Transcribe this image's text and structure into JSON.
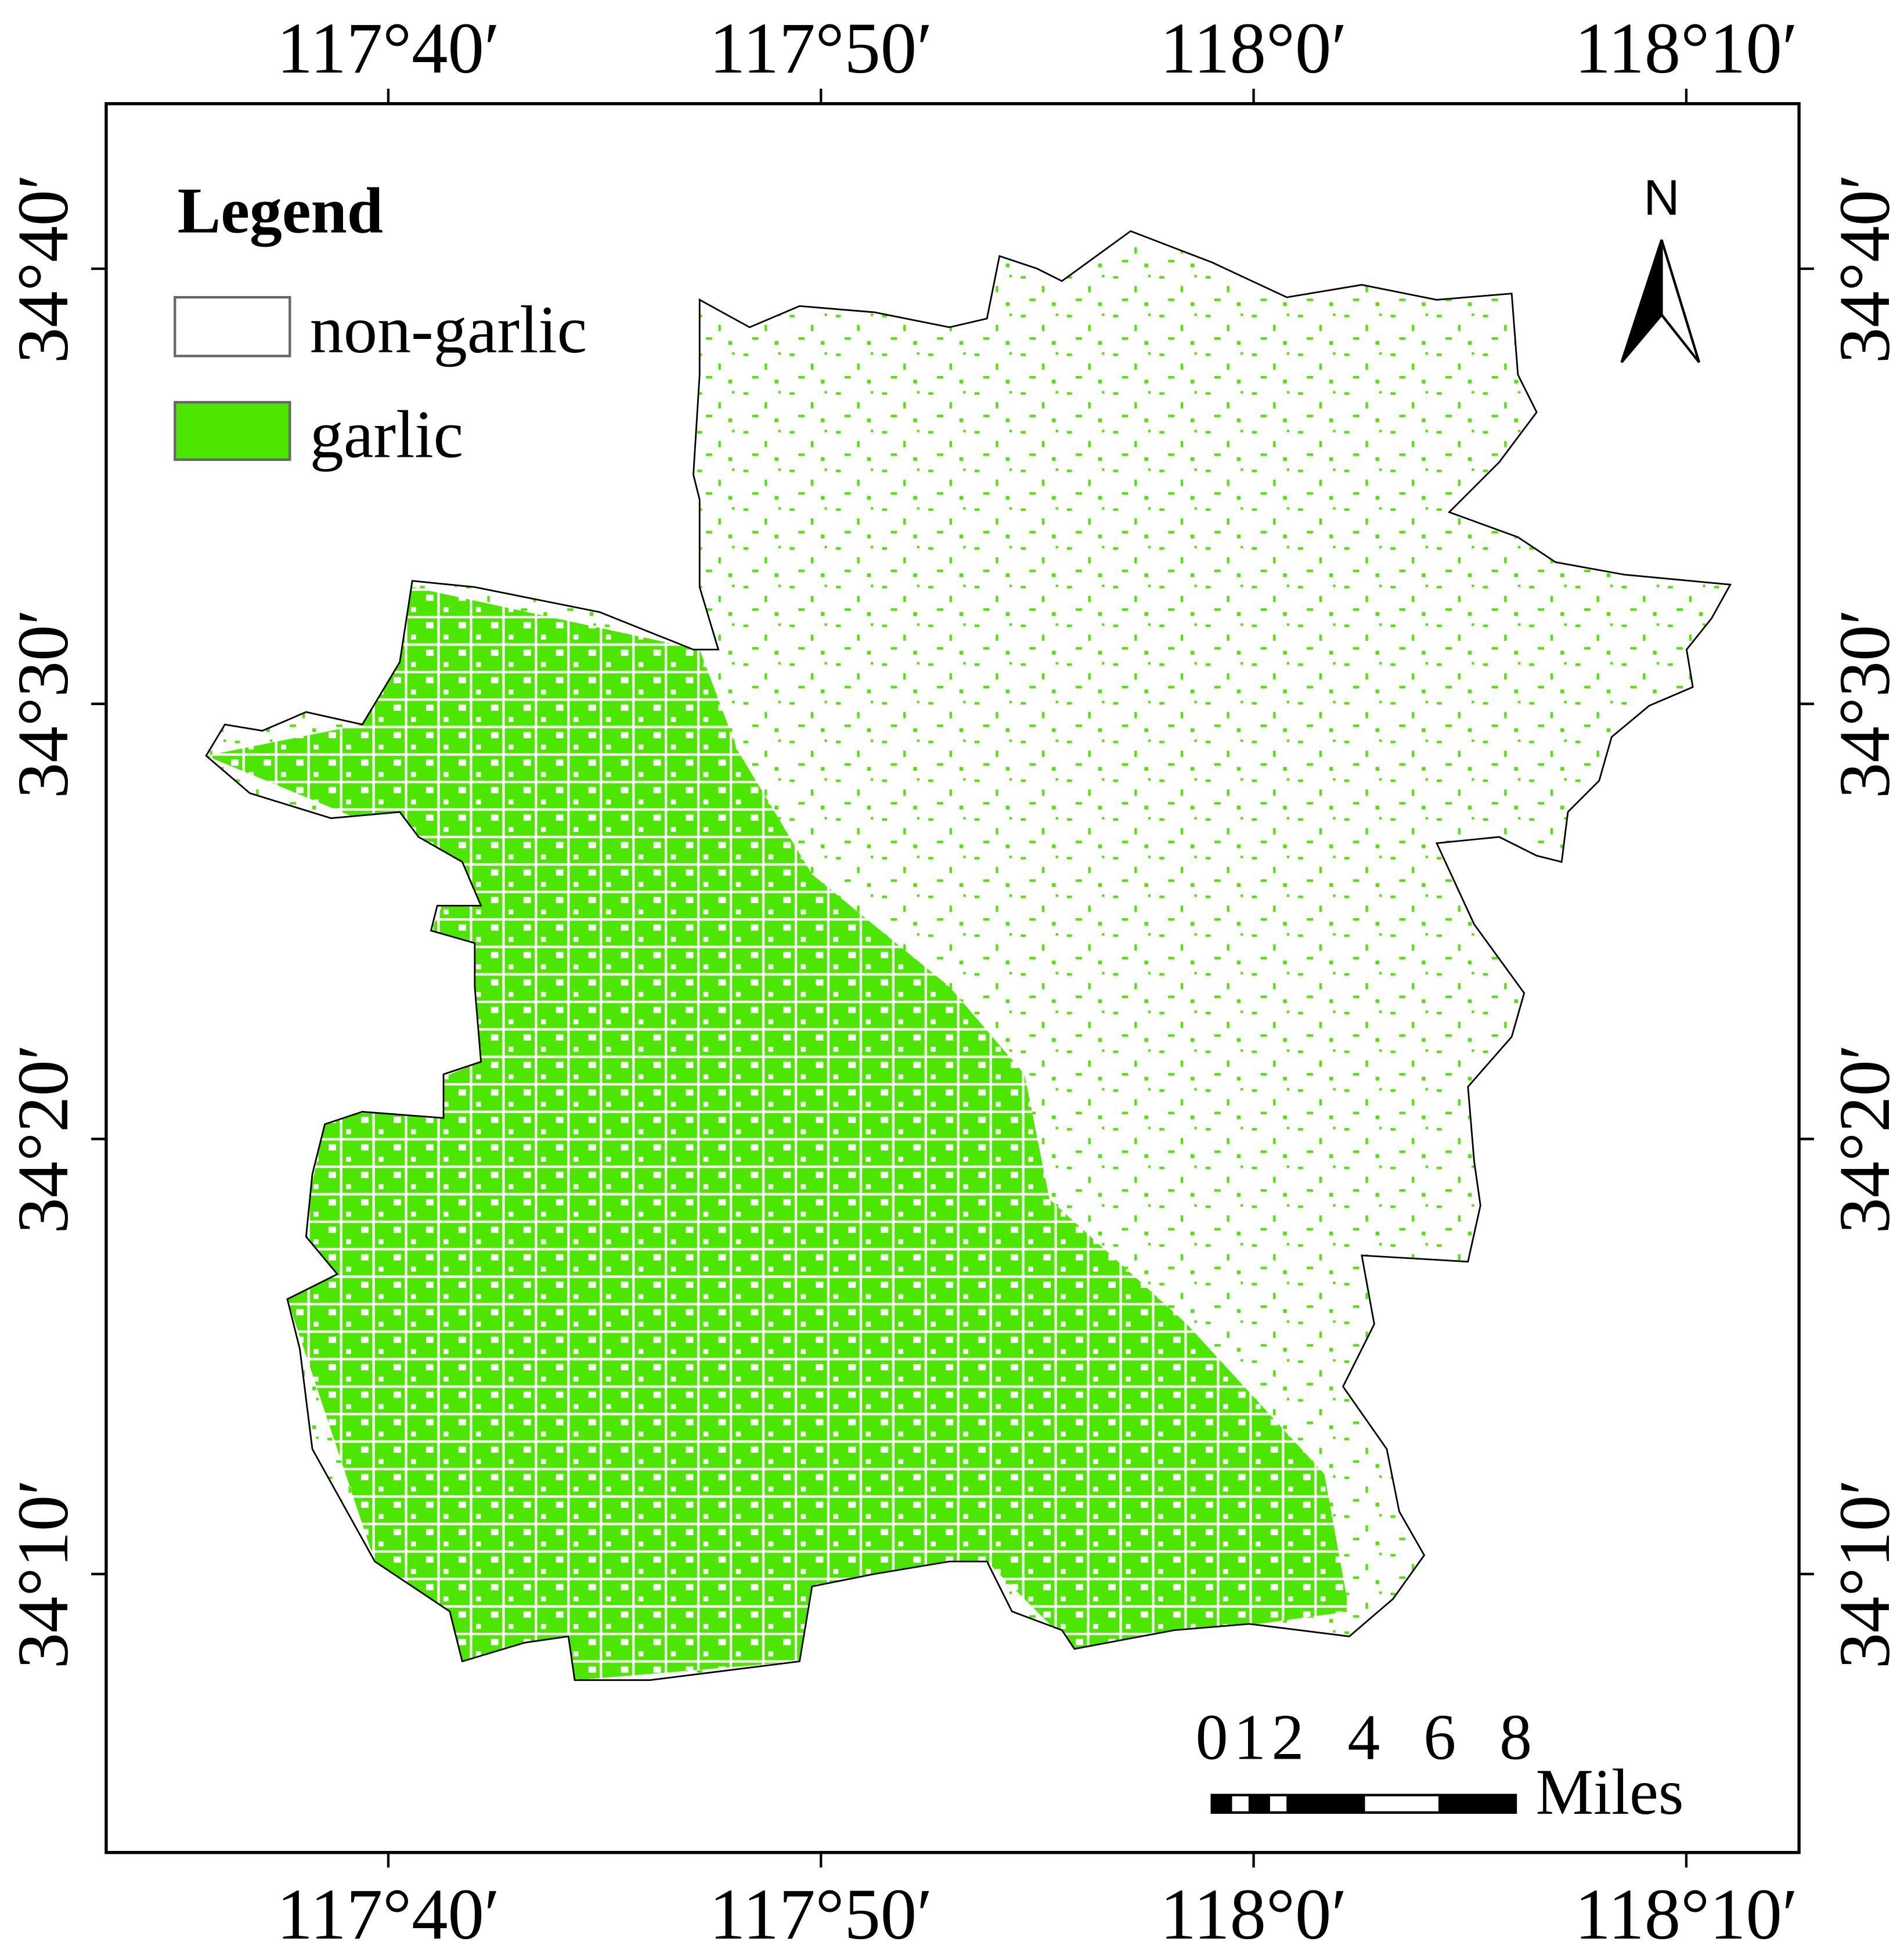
{
  "graticule": {
    "xlim": [
      117.558,
      118.2101
    ],
    "ylim": [
      34.06,
      34.7299
    ],
    "xticks": [
      {
        "value": 117.66667,
        "label": "117°40′"
      },
      {
        "value": 117.83333,
        "label": "117°50′"
      },
      {
        "value": 118.0,
        "label": "118°0′"
      },
      {
        "value": 118.16667,
        "label": "118°10′"
      }
    ],
    "yticks": [
      {
        "value": 34.66667,
        "label": "34°40′"
      },
      {
        "value": 34.5,
        "label": "34°30′"
      },
      {
        "value": 34.33333,
        "label": "34°20′"
      },
      {
        "value": 34.16667,
        "label": "34°10′"
      }
    ]
  },
  "legend": {
    "title": "Legend",
    "items": [
      {
        "label": "non-garlic",
        "color": "#ffffff"
      },
      {
        "label": "garlic",
        "color": "#4ce600"
      }
    ]
  },
  "north_arrow": "N",
  "scale_bar": {
    "ticks": [
      0,
      1,
      2,
      4,
      6,
      8
    ],
    "unit": "Miles"
  }
}
